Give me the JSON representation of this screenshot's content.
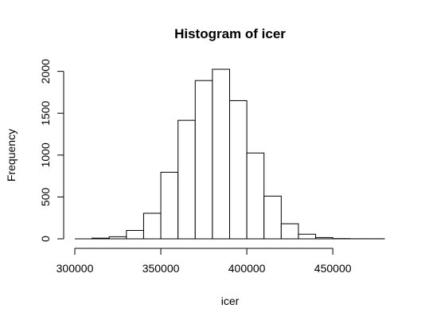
{
  "chart_data": {
    "type": "bar",
    "title": "Histogram of icer",
    "xlabel": "icer",
    "ylabel": "Frequency",
    "bin_width": 10000,
    "bin_starts": [
      310000,
      320000,
      330000,
      340000,
      350000,
      360000,
      370000,
      380000,
      390000,
      400000,
      410000,
      420000,
      430000,
      440000,
      450000,
      460000,
      470000
    ],
    "values": [
      8,
      25,
      100,
      305,
      795,
      1415,
      1890,
      2025,
      1650,
      1025,
      510,
      180,
      55,
      15,
      3,
      1,
      1
    ],
    "xlim": [
      300000,
      480000
    ],
    "ylim": [
      0,
      2025
    ],
    "x_ticks": [
      "300000",
      "350000",
      "400000",
      "450000"
    ],
    "y_ticks": [
      "0",
      "500",
      "1000",
      "1500",
      "2000"
    ],
    "colors": {
      "bar_fill": "#ffffff",
      "bar_stroke": "#000000"
    },
    "grid": false
  }
}
